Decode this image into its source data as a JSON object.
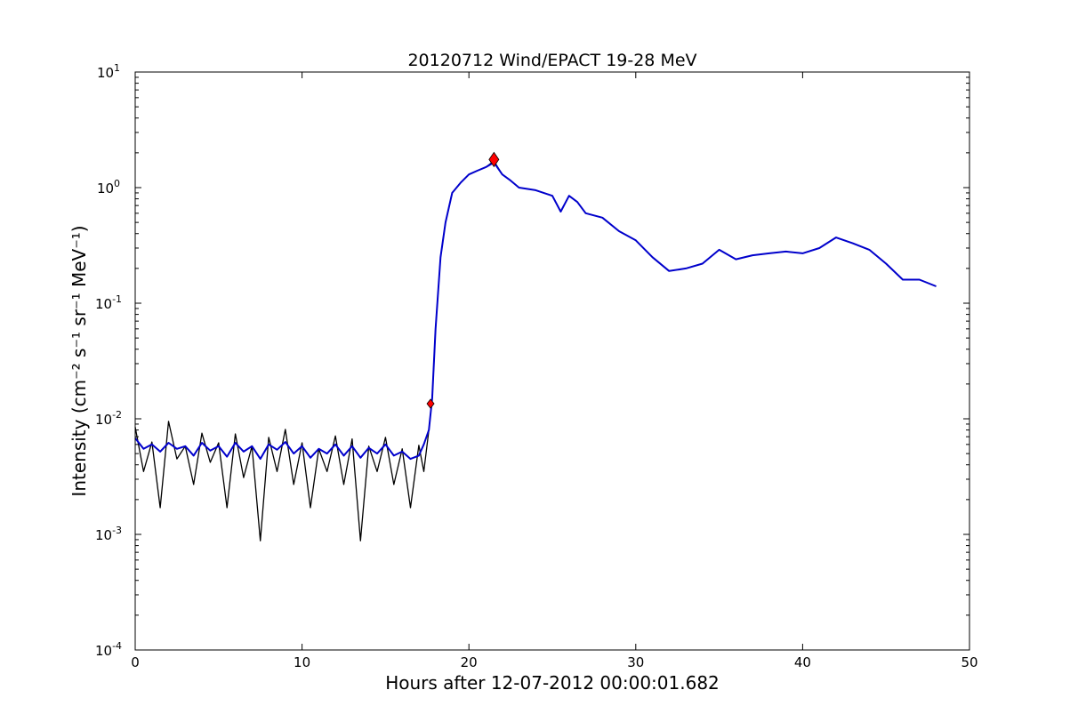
{
  "chart_data": {
    "type": "line",
    "title": "20120712 Wind/EPACT 19-28 MeV",
    "xlabel": "Hours after 12-07-2012 00:00:01.682",
    "ylabel": "Intensity (cm⁻² s⁻¹ sr⁻¹ MeV⁻¹)",
    "yscale": "log",
    "xlim": [
      0,
      50
    ],
    "ylim": [
      0.0001,
      10
    ],
    "xticks": [
      0,
      10,
      20,
      30,
      40,
      50
    ],
    "xtick_labels": [
      "0",
      "10",
      "20",
      "30",
      "40",
      "50"
    ],
    "yticks": [
      0.0001,
      0.001,
      0.01,
      0.1,
      1,
      10
    ],
    "ytick_labels": [
      {
        "base": "10",
        "exp": "-4"
      },
      {
        "base": "10",
        "exp": "-3"
      },
      {
        "base": "10",
        "exp": "-2"
      },
      {
        "base": "10",
        "exp": "-1"
      },
      {
        "base": "10",
        "exp": "0"
      },
      {
        "base": "10",
        "exp": "1"
      }
    ],
    "grid": false,
    "colors": {
      "raw": "#000000",
      "smoothed": "#0000cc",
      "markers": "#ff0000"
    },
    "series": [
      {
        "role": "raw",
        "x": [
          0,
          0.5,
          1,
          1.5,
          2,
          2.5,
          3,
          3.5,
          4,
          4.5,
          5,
          5.5,
          6,
          6.5,
          7,
          7.5,
          8,
          8.5,
          9,
          9.5,
          10,
          10.5,
          11,
          11.5,
          12,
          12.5,
          13,
          13.5,
          14,
          14.5,
          15,
          15.5,
          16,
          16.5,
          17,
          17.3,
          17.6,
          17.8,
          18,
          18.3,
          18.6,
          19,
          19.5,
          20,
          20.5,
          21,
          21.5,
          22,
          22.5,
          23,
          24,
          25,
          25.5,
          26,
          26.5,
          27,
          28,
          29,
          30,
          31,
          32,
          33,
          34,
          35,
          36,
          37,
          38,
          39,
          40,
          41,
          42,
          43,
          44,
          45,
          46,
          47,
          48
        ],
        "y": [
          0.0085,
          0.0035,
          0.0063,
          0.0017,
          0.0095,
          0.0045,
          0.0058,
          0.0027,
          0.0075,
          0.0042,
          0.0062,
          0.0017,
          0.0074,
          0.0031,
          0.0058,
          0.00088,
          0.0069,
          0.0035,
          0.0081,
          0.0027,
          0.0062,
          0.0017,
          0.0055,
          0.0035,
          0.0071,
          0.0027,
          0.0067,
          0.00088,
          0.0058,
          0.0035,
          0.0069,
          0.0027,
          0.0055,
          0.0017,
          0.0059,
          0.0035,
          0.008,
          0.015,
          0.06,
          0.25,
          0.5,
          0.9,
          1.1,
          1.3,
          1.4,
          1.5,
          1.7,
          1.3,
          1.15,
          1.0,
          0.95,
          0.85,
          0.62,
          0.85,
          0.75,
          0.6,
          0.55,
          0.42,
          0.35,
          0.25,
          0.19,
          0.2,
          0.22,
          0.29,
          0.24,
          0.26,
          0.27,
          0.28,
          0.27,
          0.3,
          0.37,
          0.33,
          0.29,
          0.22,
          0.16,
          0.16,
          0.14
        ]
      },
      {
        "role": "smoothed",
        "x": [
          0,
          0.5,
          1,
          1.5,
          2,
          2.5,
          3,
          3.5,
          4,
          4.5,
          5,
          5.5,
          6,
          6.5,
          7,
          7.5,
          8,
          8.5,
          9,
          9.5,
          10,
          10.5,
          11,
          11.5,
          12,
          12.5,
          13,
          13.5,
          14,
          14.5,
          15,
          15.5,
          16,
          16.5,
          17,
          17.3,
          17.6,
          17.8,
          18,
          18.3,
          18.6,
          19,
          19.5,
          20,
          20.5,
          21,
          21.5,
          22,
          22.5,
          23,
          24,
          25,
          25.5,
          26,
          26.5,
          27,
          28,
          29,
          30,
          31,
          32,
          33,
          34,
          35,
          36,
          37,
          38,
          39,
          40,
          41,
          42,
          43,
          44,
          45,
          46,
          47,
          48
        ],
        "y": [
          0.0068,
          0.0055,
          0.006,
          0.0052,
          0.0062,
          0.0055,
          0.0058,
          0.0048,
          0.0062,
          0.0053,
          0.0058,
          0.0047,
          0.0062,
          0.0052,
          0.0058,
          0.0045,
          0.006,
          0.0054,
          0.0063,
          0.005,
          0.0058,
          0.0046,
          0.0055,
          0.005,
          0.006,
          0.0048,
          0.0058,
          0.0046,
          0.0056,
          0.005,
          0.006,
          0.0048,
          0.0052,
          0.0045,
          0.0048,
          0.006,
          0.008,
          0.015,
          0.06,
          0.25,
          0.5,
          0.9,
          1.1,
          1.3,
          1.4,
          1.5,
          1.65,
          1.3,
          1.15,
          1.0,
          0.95,
          0.85,
          0.62,
          0.85,
          0.75,
          0.6,
          0.55,
          0.42,
          0.35,
          0.25,
          0.19,
          0.2,
          0.22,
          0.29,
          0.24,
          0.26,
          0.27,
          0.28,
          0.27,
          0.3,
          0.37,
          0.33,
          0.29,
          0.22,
          0.16,
          0.16,
          0.14
        ]
      }
    ],
    "markers": [
      {
        "name": "onset",
        "x": 17.7,
        "y": 0.0135,
        "shape": "diamond",
        "size": "small"
      },
      {
        "name": "peak",
        "x": 21.5,
        "y": 1.75,
        "shape": "diamond",
        "size": "large"
      }
    ]
  }
}
